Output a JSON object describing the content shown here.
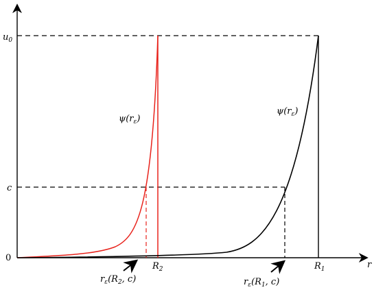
{
  "diagram": {
    "axes": {
      "x_label": "r",
      "y_ticks": {
        "u0": "u",
        "u0_sub": "0",
        "c": "c",
        "zero": "0"
      }
    },
    "x_marks": {
      "R2": {
        "main": "R",
        "sub": "2"
      },
      "R1": {
        "main": "R",
        "sub": "1"
      }
    },
    "curves": {
      "red": {
        "label_main": "ψ(r",
        "label_sub": "ε",
        "label_close": ")",
        "color": "#e8221b"
      },
      "black": {
        "label_main": "ψ(r",
        "label_sub": "ε",
        "label_close": ")",
        "color": "#000000"
      }
    },
    "annotations": {
      "red_point": {
        "main": "r",
        "sub": "ε",
        "rest": "(R",
        "rest_sub": "2",
        "tail": ", c)"
      },
      "black_point": {
        "main": "r",
        "sub": "ε",
        "rest": "(R",
        "rest_sub": "1",
        "tail": ", c)"
      }
    }
  }
}
